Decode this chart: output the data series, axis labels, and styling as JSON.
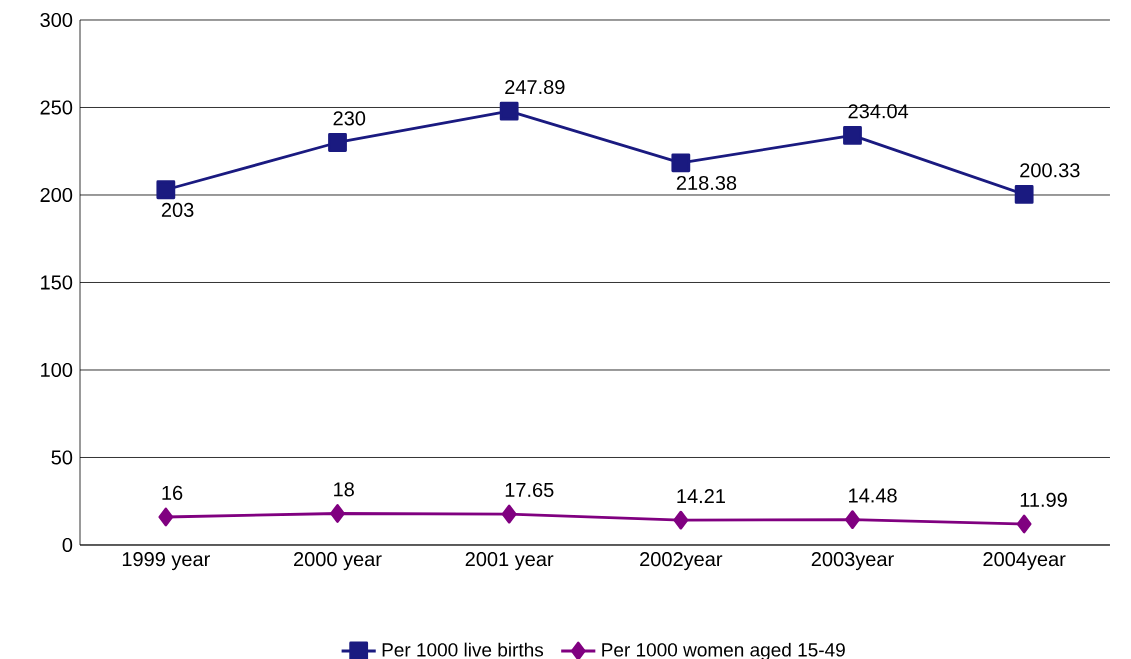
{
  "chart_data": {
    "type": "line",
    "categories": [
      "1999 year",
      "2000 year",
      "2001 year",
      "2002year",
      "2003year",
      "2004year"
    ],
    "series": [
      {
        "name": "Per 1000 live births",
        "color": "#1a1a80",
        "marker": "square",
        "values": [
          203,
          230,
          247.89,
          218.38,
          234.04,
          200.33
        ]
      },
      {
        "name": "Per 1000 women aged 15-49",
        "color": "#800080",
        "marker": "diamond",
        "values": [
          16,
          18,
          17.65,
          14.21,
          14.48,
          11.99
        ]
      }
    ],
    "ylim": [
      0,
      300
    ],
    "yticks": [
      0,
      50,
      100,
      150,
      200,
      250,
      300
    ],
    "grid": "y",
    "legend": "bottom",
    "data_labels": true,
    "line_style": "solid"
  }
}
